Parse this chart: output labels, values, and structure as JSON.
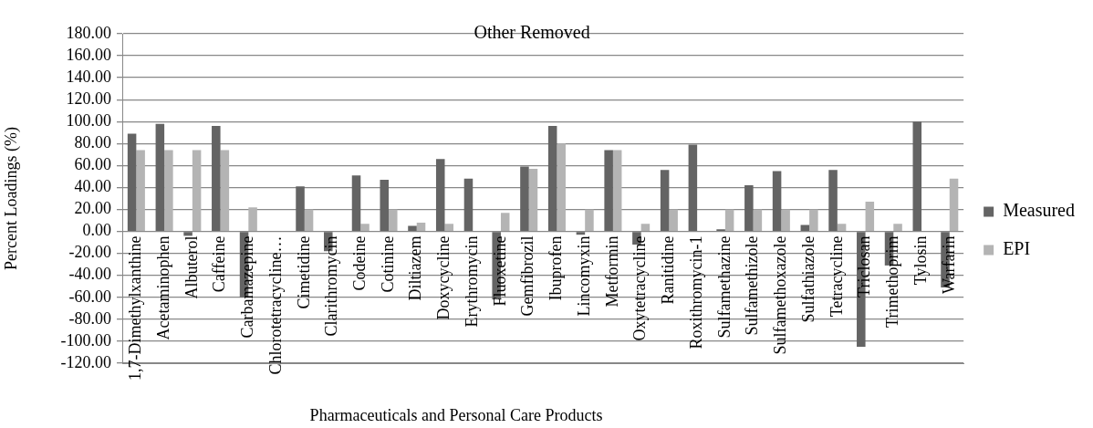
{
  "chart_data": {
    "type": "bar",
    "title": "Other Removed",
    "xlabel": "Pharmaceuticals and Personal Care Products",
    "ylabel": "Percent Loadings (%)",
    "categories": [
      "1,7-Dimethylxanthine",
      "Acetaminophen",
      "Albuterol",
      "Caffeine",
      "Carbamazepine",
      "Chlorotetracycline…",
      "Cimetidine",
      "Clarithromycin",
      "Codeine",
      "Cotinine",
      "Diltiazem",
      "Doxycycline",
      "Erythromycin",
      "Fluoxetine",
      "Gemfibrozil",
      "Ibuprofen",
      "Lincomyxin",
      "Metformin",
      "Oxytetracycline",
      "Ranitidine",
      "Roxithromycin-1",
      "Sulfamethazine",
      "Sulfamethizole",
      "Sulfamethoxazole",
      "Sulfathiazole",
      "Tetracycline",
      "Triclosan",
      "Trimethoprim",
      "Tylosin",
      "Warfarin"
    ],
    "series": [
      {
        "name": "Measured",
        "color": "#646464",
        "values": [
          89,
          98,
          -4,
          96,
          -60,
          0,
          41,
          -18,
          51,
          47,
          5,
          66,
          48,
          -62,
          59,
          96,
          -3,
          74,
          -12,
          56,
          79,
          2,
          42,
          55,
          6,
          56,
          -105,
          -31,
          100,
          -51
        ]
      },
      {
        "name": "EPI",
        "color": "#b4b4b4",
        "values": [
          74,
          74,
          74,
          74,
          22,
          0,
          20,
          0,
          7,
          20,
          8,
          7,
          0,
          17,
          57,
          80,
          20,
          74,
          7,
          20,
          0,
          20,
          20,
          20,
          20,
          7,
          27,
          7,
          0,
          48
        ]
      }
    ],
    "ylim": [
      -120,
      180
    ],
    "yticks": [
      {
        "value": -120,
        "label": "-120.00"
      },
      {
        "value": -100,
        "label": "-100.00"
      },
      {
        "value": -80,
        "label": "-80.00"
      },
      {
        "value": -60,
        "label": "-60.00"
      },
      {
        "value": -40,
        "label": "-40.00"
      },
      {
        "value": -20,
        "label": "-20.00"
      },
      {
        "value": 0,
        "label": "0.00"
      },
      {
        "value": 20,
        "label": "20.00"
      },
      {
        "value": 40,
        "label": "40.00"
      },
      {
        "value": 60,
        "label": "60.00"
      },
      {
        "value": 80,
        "label": "80.00"
      },
      {
        "value": 100,
        "label": "100.00"
      },
      {
        "value": 120,
        "label": "120.00"
      },
      {
        "value": 140,
        "label": "140.00"
      },
      {
        "value": 160,
        "label": "160.00"
      },
      {
        "value": 180,
        "label": "180.00"
      }
    ],
    "grid": "y",
    "legend": "right"
  }
}
